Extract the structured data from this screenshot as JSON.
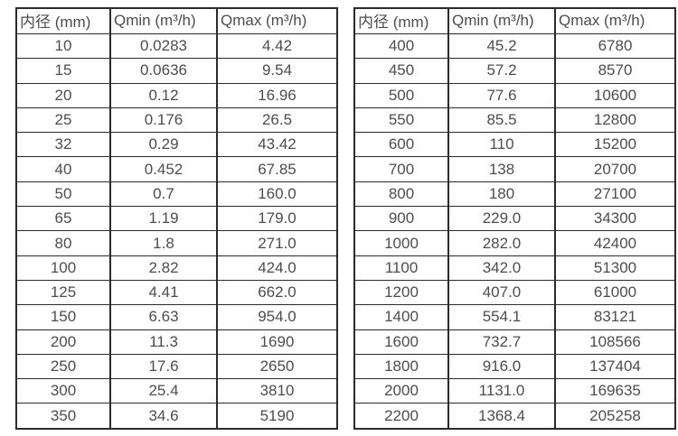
{
  "page": {
    "background_color": "#ffffff",
    "text_color": "#4d4d4d",
    "border_color": "#2b2b2b"
  },
  "tables": [
    {
      "name": "flow-table-small-diameters",
      "headers": [
        "内径 (mm)",
        "Qmin (m³/h)",
        "Qmax (m³/h)"
      ],
      "rows": [
        [
          "10",
          "0.0283",
          "4.42"
        ],
        [
          "15",
          "0.0636",
          "9.54"
        ],
        [
          "20",
          "0.12",
          "16.96"
        ],
        [
          "25",
          "0.176",
          "26.5"
        ],
        [
          "32",
          "0.29",
          "43.42"
        ],
        [
          "40",
          "0.452",
          "67.85"
        ],
        [
          "50",
          "0.7",
          "160.0"
        ],
        [
          "65",
          "1.19",
          "179.0"
        ],
        [
          "80",
          "1.8",
          "271.0"
        ],
        [
          "100",
          "2.82",
          "424.0"
        ],
        [
          "125",
          "4.41",
          "662.0"
        ],
        [
          "150",
          "6.63",
          "954.0"
        ],
        [
          "200",
          "11.3",
          "1690"
        ],
        [
          "250",
          "17.6",
          "2650"
        ],
        [
          "300",
          "25.4",
          "3810"
        ],
        [
          "350",
          "34.6",
          "5190"
        ]
      ]
    },
    {
      "name": "flow-table-large-diameters",
      "headers": [
        "内径 (mm)",
        "Qmin (m³/h)",
        "Qmax (m³/h)"
      ],
      "rows": [
        [
          "400",
          "45.2",
          "6780"
        ],
        [
          "450",
          "57.2",
          "8570"
        ],
        [
          "500",
          "77.6",
          "10600"
        ],
        [
          "550",
          "85.5",
          "12800"
        ],
        [
          "600",
          "110",
          "15200"
        ],
        [
          "700",
          "138",
          "20700"
        ],
        [
          "800",
          "180",
          "27100"
        ],
        [
          "900",
          "229.0",
          "34300"
        ],
        [
          "1000",
          "282.0",
          "42400"
        ],
        [
          "1100",
          "342.0",
          "51300"
        ],
        [
          "1200",
          "407.0",
          "61000"
        ],
        [
          "1400",
          "554.1",
          "83121"
        ],
        [
          "1600",
          "732.7",
          "108566"
        ],
        [
          "1800",
          "916.0",
          "137404"
        ],
        [
          "2000",
          "1131.0",
          "169635"
        ],
        [
          "2200",
          "1368.4",
          "205258"
        ]
      ]
    }
  ]
}
